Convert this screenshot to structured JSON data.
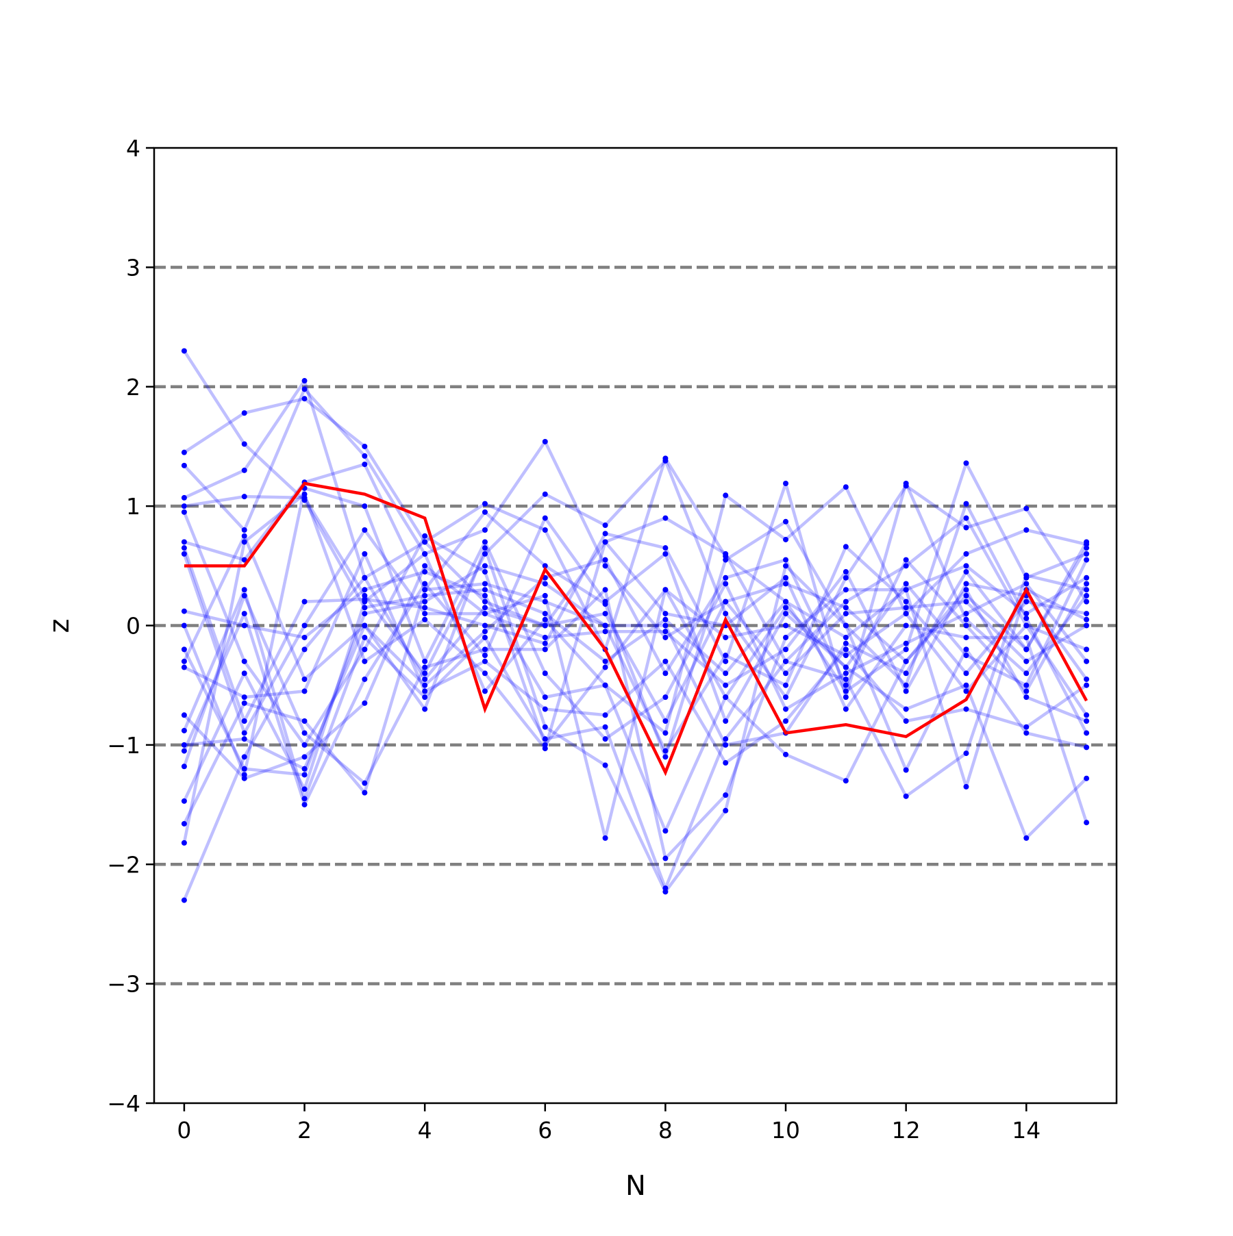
{
  "chart_data": {
    "type": "line",
    "xlabel": "N",
    "ylabel": "z",
    "xlim": [
      -0.5,
      15.5
    ],
    "ylim": [
      -4,
      4
    ],
    "xticks": [
      0,
      2,
      4,
      6,
      8,
      10,
      12,
      14
    ],
    "yticks": [
      -4,
      -3,
      -2,
      -1,
      0,
      1,
      2,
      3,
      4
    ],
    "ytick_labels": [
      "−4",
      "−3",
      "−2",
      "−1",
      "0",
      "1",
      "2",
      "3",
      "4"
    ],
    "reference_lines": [
      -3,
      -2,
      -1,
      0,
      1,
      2,
      3
    ],
    "reference_line_style": "dashed",
    "grid": false,
    "legend": "none",
    "colors": {
      "background_series": "#0000ff",
      "highlight": "#ff0000",
      "reference": "#808080"
    },
    "x": [
      0,
      1,
      2,
      3,
      4,
      5,
      6,
      7,
      8,
      9,
      10,
      11,
      12,
      13,
      14,
      15
    ],
    "highlight_series": {
      "values": [
        0.5,
        0.5,
        1.19,
        1.1,
        0.9,
        -0.7,
        0.47,
        -0.2,
        -1.23,
        0.05,
        -0.9,
        -0.83,
        -0.93,
        -0.62,
        0.3,
        -0.63
      ]
    },
    "background_series": [
      [
        2.3,
        1.52,
        1.05,
        0.15,
        0.25,
        0.3,
        0.1,
        -0.3,
        0.05,
        -0.4,
        0.2,
        -0.1,
        0.3,
        0.5,
        0.1,
        0.4
      ],
      [
        1.45,
        1.78,
        1.9,
        1.5,
        0.7,
        0.2,
        0.0,
        0.7,
        0.9,
        0.6,
        -0.3,
        0.2,
        0.5,
        0.9,
        0.0,
        -0.2
      ],
      [
        1.34,
        0.8,
        1.98,
        1.42,
        0.6,
        0.8,
        1.54,
        0.5,
        -0.1,
        0.2,
        0.35,
        0.15,
        -0.3,
        0.25,
        -0.2,
        0.7
      ],
      [
        1.07,
        1.3,
        2.05,
        0.4,
        0.7,
        1.02,
        0.8,
        -0.2,
        1.4,
        0.58,
        0.2,
        -0.55,
        -0.2,
        1.36,
        0.4,
        0.6
      ],
      [
        1.0,
        1.08,
        1.07,
        0.25,
        -0.4,
        0.6,
        1.1,
        0.84,
        1.38,
        0.1,
        -0.6,
        0.4,
        1.17,
        0.82,
        0.98,
        0.2
      ],
      [
        0.7,
        0.55,
        1.2,
        1.35,
        0.3,
        0.95,
        0.5,
        0.18,
        -1.1,
        0.55,
        0.87,
        0.0,
        -0.5,
        1.02,
        0.06,
        -0.9
      ],
      [
        0.65,
        -0.8,
        0.2,
        0.22,
        0.15,
        0.0,
        -0.15,
        0.77,
        0.65,
        -0.3,
        1.19,
        -0.6,
        1.19,
        0.05,
        -0.4,
        0.25
      ],
      [
        0.12,
        0.0,
        -0.1,
        0.3,
        0.45,
        0.25,
        -0.6,
        -0.5,
        -0.9,
        1.09,
        0.72,
        1.16,
        0.1,
        0.6,
        0.8,
        0.68
      ],
      [
        -0.2,
        -1.2,
        -1.25,
        0.1,
        0.2,
        0.5,
        0.35,
        0.0,
        -1.05,
        -0.25,
        -0.5,
        0.66,
        0.2,
        -0.4,
        0.2,
        0.1
      ],
      [
        -0.35,
        -0.6,
        -0.55,
        0.6,
        -0.55,
        -0.3,
        -0.7,
        -0.75,
        -0.3,
        -1.15,
        -0.8,
        -0.2,
        -0.8,
        -0.7,
        -0.85,
        -0.5
      ],
      [
        -0.75,
        -1.28,
        -1.1,
        -0.65,
        0.5,
        0.1,
        0.25,
        -1.78,
        0.3,
        -0.6,
        -1.08,
        -1.3,
        -0.3,
        0.3,
        -0.6,
        -0.8
      ],
      [
        -0.88,
        0.3,
        -1.45,
        -0.1,
        -0.6,
        -0.1,
        -0.95,
        -0.85,
        -2.2,
        -0.95,
        -0.3,
        -0.45,
        -1.43,
        -1.07,
        0.42,
        0.3
      ],
      [
        -1.0,
        -0.95,
        -1.2,
        0.0,
        -0.7,
        0.65,
        -0.85,
        -1.17,
        -2.23,
        -1.55,
        0.5,
        0.0,
        -1.21,
        -0.2,
        -0.9,
        -1.02
      ],
      [
        -1.18,
        0.25,
        -0.9,
        -1.32,
        -0.35,
        -0.2,
        -0.2,
        0.3,
        -1.95,
        -1.42,
        -0.1,
        0.3,
        0.3,
        -1.35,
        0.3,
        0.05
      ],
      [
        -1.47,
        -0.4,
        -1.37,
        0.2,
        0.6,
        -0.55,
        0.05,
        -0.5,
        -1.72,
        -0.6,
        0.15,
        -0.35,
        -0.7,
        -0.5,
        -1.78,
        -1.28
      ],
      [
        -1.66,
        -0.65,
        -0.8,
        -1.4,
        0.3,
        0.35,
        0.2,
        0.0,
        0.0,
        -1.0,
        -0.9,
        -0.15,
        -0.4,
        0.45,
        -0.2,
        0.65
      ],
      [
        -1.82,
        0.7,
        1.1,
        -0.3,
        0.05,
        -0.4,
        -1.03,
        0.7,
        0.1,
        0.0,
        0.4,
        -0.7,
        0.0,
        -0.1,
        -0.1,
        -1.65
      ],
      [
        -2.3,
        -1.1,
        -0.2,
        0.4,
        -0.45,
        0.15,
        0.0,
        0.1,
        -0.8,
        0.2,
        -0.4,
        0.1,
        0.15,
        0.2,
        -0.3,
        0.0
      ],
      [
        0.95,
        -0.3,
        -1.0,
        -0.2,
        0.75,
        0.45,
        -1.0,
        -0.35,
        0.3,
        -0.1,
        0.0,
        -0.25,
        0.1,
        -0.55,
        0.0,
        -0.75
      ],
      [
        -0.3,
        0.75,
        -0.45,
        0.0,
        -0.5,
        -0.05,
        0.4,
        0.55,
        -0.4,
        0.4,
        0.55,
        -0.5,
        0.55,
        0.0,
        -0.55,
        0.35
      ],
      [
        0.6,
        -0.9,
        0.0,
        0.8,
        0.1,
        0.1,
        -0.1,
        -0.05,
        -0.05,
        -0.5,
        -0.2,
        0.45,
        -0.55,
        0.35,
        0.25,
        -0.45
      ],
      [
        -1.05,
        0.1,
        -1.5,
        -0.45,
        0.35,
        -0.25,
        0.9,
        0.2,
        0.6,
        -0.8,
        0.1,
        -0.35,
        0.35,
        -0.25,
        -0.5,
        0.55
      ],
      [
        0.0,
        -1.25,
        1.15,
        1.0,
        -0.3,
        0.7,
        -0.4,
        -0.95,
        -0.6,
        0.35,
        -0.7,
        -0.4,
        -0.15,
        0.1,
        0.35,
        -0.3
      ]
    ]
  }
}
